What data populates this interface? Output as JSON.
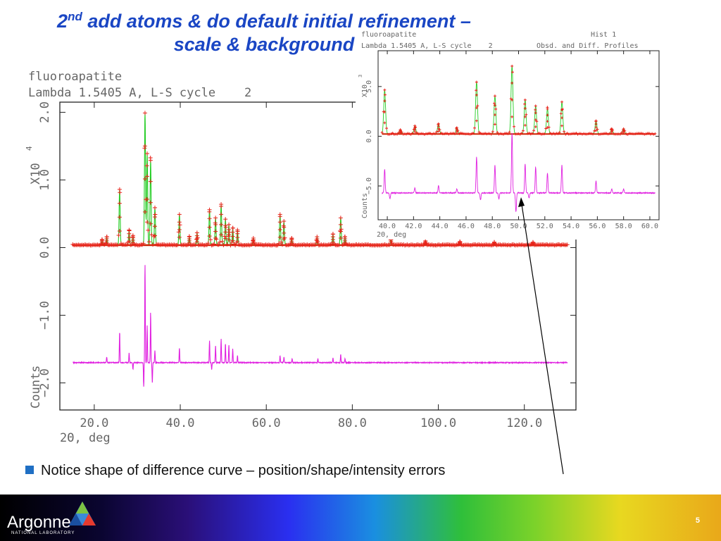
{
  "slide": {
    "title_ordinal": "2",
    "title_sup": "nd",
    "title_line1_rest": " add atoms & do default initial refinement –",
    "title_line2": "scale & background",
    "bullet": "Notice shape of difference curve – position/shape/intensity errors",
    "page_number": "5",
    "logo_text": "Argonne",
    "logo_sub": "NATIONAL LABORATORY"
  },
  "colors": {
    "title": "#1a46c4",
    "observed": "#e8231a",
    "calculated": "#22cc22",
    "difference": "#e020e0",
    "background_curve": "#cc2200",
    "axis": "#222222",
    "bullet_square": "#1f6fc4"
  },
  "chart_data": [
    {
      "type": "line",
      "header_line1": "fluoroapatite",
      "header_line2": "Lambda 1.5405 A, L-S cycle    2",
      "xlabel": "2Θ, deg",
      "ylabel": "Counts",
      "yscale_label": "X10",
      "yscale_exp": "4",
      "xlim": [
        12,
        132
      ],
      "ylim": [
        -2.4,
        2.15
      ],
      "xticks": [
        20.0,
        40.0,
        60.0,
        80.0,
        100.0,
        120.0
      ],
      "xtick_labels": [
        "20.0",
        "40.0",
        "60.0",
        "80.0",
        "100.0",
        "120.0"
      ],
      "yticks": [
        -2.0,
        -1.0,
        0.0,
        1.0,
        2.0
      ],
      "ytick_labels": [
        "−2.0",
        "−1.0",
        "0.0",
        "1.0",
        "2.0"
      ],
      "data_range": [
        15,
        130
      ],
      "background_level": 0.04,
      "difference_offset": -1.7,
      "peaks": [
        {
          "x": 21.8,
          "h": 0.08
        },
        {
          "x": 22.9,
          "h": 0.12
        },
        {
          "x": 25.9,
          "h": 0.82
        },
        {
          "x": 28.1,
          "h": 0.22
        },
        {
          "x": 29.0,
          "h": 0.14
        },
        {
          "x": 31.8,
          "h": 1.95
        },
        {
          "x": 32.3,
          "h": 1.35
        },
        {
          "x": 33.1,
          "h": 1.25
        },
        {
          "x": 34.1,
          "h": 0.55
        },
        {
          "x": 39.8,
          "h": 0.45
        },
        {
          "x": 42.1,
          "h": 0.12
        },
        {
          "x": 43.9,
          "h": 0.18
        },
        {
          "x": 46.8,
          "h": 0.52
        },
        {
          "x": 48.2,
          "h": 0.4
        },
        {
          "x": 49.5,
          "h": 0.6
        },
        {
          "x": 50.5,
          "h": 0.38
        },
        {
          "x": 51.3,
          "h": 0.3
        },
        {
          "x": 52.2,
          "h": 0.25
        },
        {
          "x": 53.3,
          "h": 0.22
        },
        {
          "x": 57.0,
          "h": 0.1
        },
        {
          "x": 63.2,
          "h": 0.45
        },
        {
          "x": 64.1,
          "h": 0.35
        },
        {
          "x": 65.9,
          "h": 0.1
        },
        {
          "x": 71.8,
          "h": 0.12
        },
        {
          "x": 75.5,
          "h": 0.16
        },
        {
          "x": 77.3,
          "h": 0.4
        },
        {
          "x": 78.3,
          "h": 0.12
        },
        {
          "x": 89.0,
          "h": 0.1
        },
        {
          "x": 97.0,
          "h": 0.06
        },
        {
          "x": 105.0,
          "h": 0.05
        },
        {
          "x": 113.0,
          "h": 0.04
        },
        {
          "x": 122.0,
          "h": 0.04
        }
      ],
      "difference_spikes": [
        {
          "x": 22.9,
          "d": 0.08
        },
        {
          "x": 25.9,
          "d": 0.45
        },
        {
          "x": 28.1,
          "d": 0.14
        },
        {
          "x": 29.0,
          "d": -0.1
        },
        {
          "x": 31.8,
          "d": 1.45
        },
        {
          "x": 31.5,
          "d": -0.35
        },
        {
          "x": 32.3,
          "d": 0.55
        },
        {
          "x": 33.1,
          "d": 0.75
        },
        {
          "x": 33.5,
          "d": -0.3
        },
        {
          "x": 34.1,
          "d": 0.18
        },
        {
          "x": 39.8,
          "d": 0.22
        },
        {
          "x": 46.8,
          "d": 0.32
        },
        {
          "x": 47.3,
          "d": -0.1
        },
        {
          "x": 48.2,
          "d": 0.25
        },
        {
          "x": 49.5,
          "d": 0.35
        },
        {
          "x": 50.5,
          "d": 0.28
        },
        {
          "x": 51.3,
          "d": 0.26
        },
        {
          "x": 52.2,
          "d": 0.2
        },
        {
          "x": 53.3,
          "d": 0.1
        },
        {
          "x": 63.2,
          "d": 0.1
        },
        {
          "x": 64.1,
          "d": 0.08
        },
        {
          "x": 66.0,
          "d": 0.06
        },
        {
          "x": 72.0,
          "d": 0.06
        },
        {
          "x": 75.5,
          "d": 0.07
        },
        {
          "x": 77.3,
          "d": 0.12
        },
        {
          "x": 78.3,
          "d": 0.06
        }
      ]
    },
    {
      "type": "line",
      "header_line1": "fluoroapatite",
      "header_line2": "Lambda 1.5405 A, L-S cycle    2",
      "hist_label": "Hist  1",
      "profile_label": "Obsd. and Diff. Profiles",
      "xlabel": "2Θ, deg",
      "ylabel": "Counts",
      "yscale_label": "X10",
      "yscale_exp": "3",
      "xlim": [
        39.3,
        60.7
      ],
      "ylim": [
        -8.4,
        8.6
      ],
      "xticks": [
        40.0,
        42.0,
        44.0,
        46.0,
        48.0,
        50.0,
        52.0,
        54.0,
        56.0,
        58.0,
        60.0
      ],
      "xtick_labels": [
        "40.0",
        "42.0",
        "44.0",
        "46.0",
        "48.0",
        "50.0",
        "52.0",
        "54.0",
        "56.0",
        "58.0",
        "60.0"
      ],
      "yticks": [
        -5.0,
        0.0,
        5.0
      ],
      "ytick_labels": [
        "−5.0",
        "0.0",
        "5.0"
      ],
      "data_range": [
        39.6,
        60.4
      ],
      "background_level": 0.25,
      "difference_offset": -5.7,
      "peaks": [
        {
          "x": 39.8,
          "h": 4.4
        },
        {
          "x": 41.0,
          "h": 0.4
        },
        {
          "x": 42.1,
          "h": 0.8
        },
        {
          "x": 43.9,
          "h": 1.0
        },
        {
          "x": 45.3,
          "h": 0.6
        },
        {
          "x": 46.8,
          "h": 5.2
        },
        {
          "x": 48.2,
          "h": 3.8
        },
        {
          "x": 49.5,
          "h": 6.8
        },
        {
          "x": 50.5,
          "h": 3.4
        },
        {
          "x": 51.3,
          "h": 2.8
        },
        {
          "x": 52.2,
          "h": 2.5
        },
        {
          "x": 53.3,
          "h": 3.2
        },
        {
          "x": 55.9,
          "h": 1.3
        },
        {
          "x": 57.1,
          "h": 0.5
        },
        {
          "x": 58.0,
          "h": 0.5
        }
      ],
      "difference_spikes": [
        {
          "x": 39.8,
          "d": 2.4
        },
        {
          "x": 40.2,
          "d": -0.6
        },
        {
          "x": 42.1,
          "d": 0.5
        },
        {
          "x": 43.9,
          "d": 0.7
        },
        {
          "x": 45.3,
          "d": 0.4
        },
        {
          "x": 46.8,
          "d": 3.6
        },
        {
          "x": 47.1,
          "d": -0.7
        },
        {
          "x": 48.2,
          "d": 2.8
        },
        {
          "x": 48.5,
          "d": -0.6
        },
        {
          "x": 49.5,
          "d": 6.0
        },
        {
          "x": 49.8,
          "d": -1.9
        },
        {
          "x": 50.5,
          "d": 2.9
        },
        {
          "x": 50.8,
          "d": -0.5
        },
        {
          "x": 51.3,
          "d": 2.6
        },
        {
          "x": 52.2,
          "d": 2.0
        },
        {
          "x": 53.3,
          "d": 2.8
        },
        {
          "x": 55.9,
          "d": 1.2
        },
        {
          "x": 57.1,
          "d": 0.4
        },
        {
          "x": 58.0,
          "d": 0.4
        }
      ]
    }
  ]
}
